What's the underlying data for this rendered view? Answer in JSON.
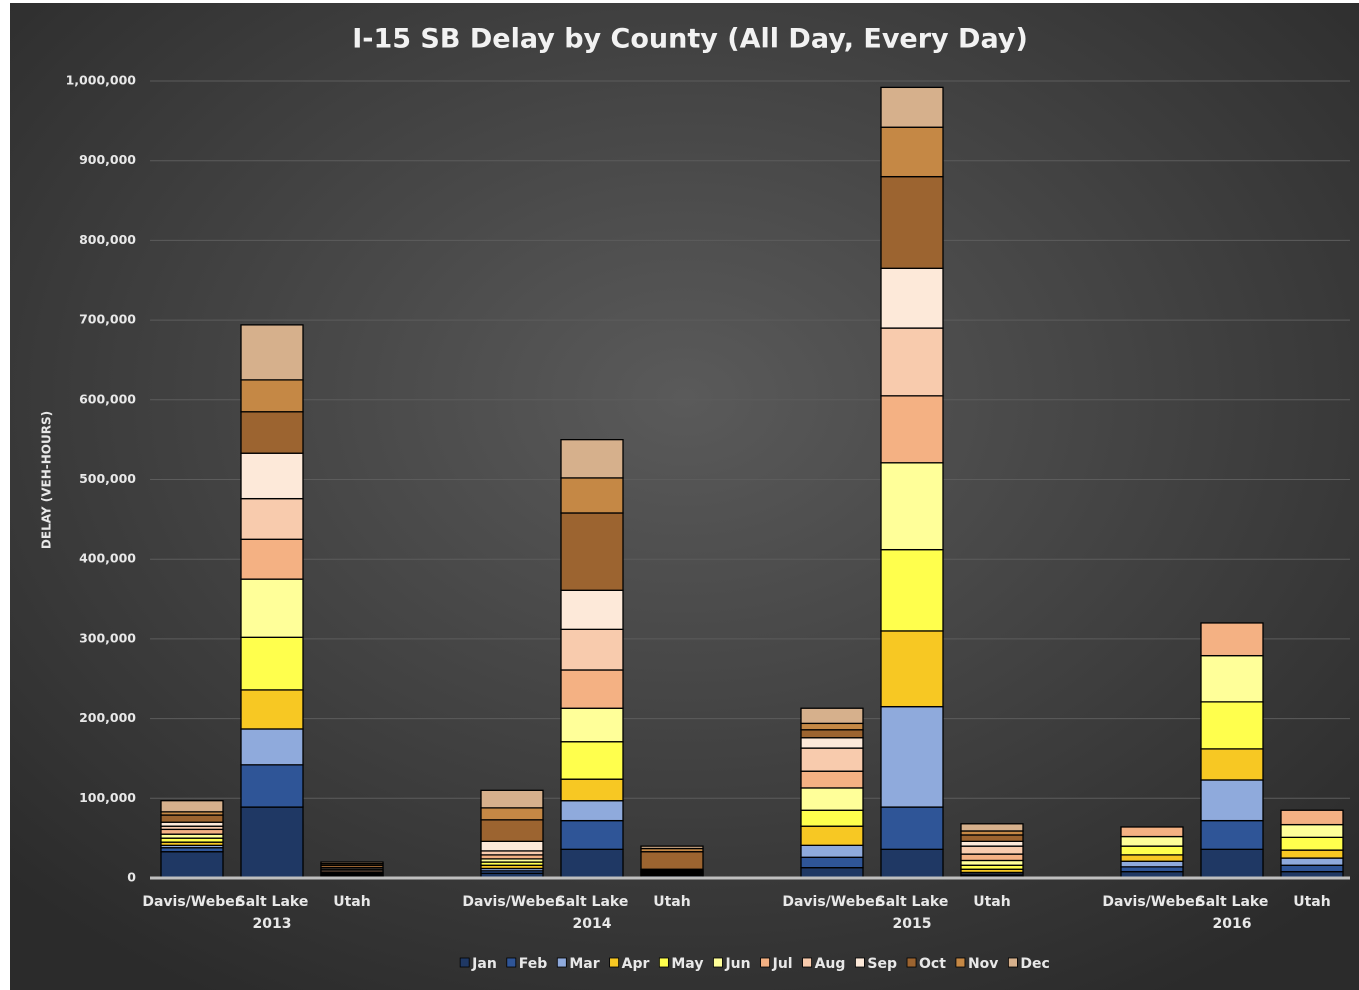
{
  "chart_data": {
    "type": "stacked_bar",
    "title": "I-15 SB Delay by County (All Day, Every Day)",
    "y_label": "DELAY (VEH-HOURS)",
    "categories": [
      "Davis/Weber",
      "Salt Lake",
      "Utah",
      "Davis/Weber",
      "Salt Lake",
      "Utah",
      "Davis/Weber",
      "Salt Lake",
      "Utah",
      "Davis/Weber",
      "Salt Lake",
      "Utah"
    ],
    "groups": [
      "2013",
      "2014",
      "2015",
      "2016"
    ],
    "ylim": [
      0,
      1000000
    ],
    "yticks": [
      0,
      {
        "value": 100000,
        "label": "100,000"
      },
      {
        "value": 200000,
        "label": "200,000"
      },
      {
        "value": 300000,
        "label": "300,000"
      },
      {
        "value": 400000,
        "label": "400,000"
      },
      {
        "value": 500000,
        "label": "500,000"
      },
      {
        "value": 600000,
        "label": "600,000"
      },
      {
        "value": 700000,
        "label": "700,000"
      },
      {
        "value": 800000,
        "label": "800,000"
      },
      {
        "value": 900000,
        "label": "900,000"
      },
      {
        "value": 1000000,
        "label": "1,000,000"
      }
    ],
    "grid": true,
    "legend": "bottom",
    "series": [
      {
        "name": "Jan",
        "color": "#1f3864",
        "values": [
          33000,
          89000,
          2000,
          6000,
          36000,
          3000,
          13000,
          36000,
          3000,
          8000,
          36000,
          8000
        ]
      },
      {
        "name": "Feb",
        "color": "#2f5597",
        "values": [
          5000,
          53000,
          1000,
          3000,
          36000,
          1000,
          13000,
          53000,
          2000,
          6000,
          36000,
          8000
        ]
      },
      {
        "name": "Mar",
        "color": "#8faadc",
        "values": [
          3000,
          45000,
          1000,
          3000,
          25000,
          1000,
          15000,
          126000,
          2000,
          7000,
          51000,
          9000
        ]
      },
      {
        "name": "Apr",
        "color": "#f7c823",
        "values": [
          4000,
          49000,
          1000,
          4000,
          27000,
          1000,
          24000,
          95000,
          4000,
          8000,
          39000,
          10000
        ]
      },
      {
        "name": "May",
        "color": "#ffff4d",
        "values": [
          5000,
          66000,
          1000,
          4000,
          47000,
          1000,
          20000,
          102000,
          5000,
          11000,
          59000,
          16000
        ]
      },
      {
        "name": "Jun",
        "color": "#ffff99",
        "values": [
          5000,
          73000,
          1000,
          4000,
          42000,
          1000,
          28000,
          109000,
          6000,
          12000,
          58000,
          16000
        ]
      },
      {
        "name": "Jul",
        "color": "#f4b183",
        "values": [
          6000,
          50000,
          2000,
          5000,
          48000,
          1000,
          21000,
          84000,
          8000,
          12000,
          41000,
          18000
        ]
      },
      {
        "name": "Aug",
        "color": "#f8cbad",
        "values": [
          4000,
          51000,
          2000,
          5000,
          51000,
          1000,
          29000,
          85000,
          10000,
          null,
          null,
          null
        ]
      },
      {
        "name": "Sep",
        "color": "#fde9d9",
        "values": [
          5000,
          57000,
          2000,
          12000,
          49000,
          1000,
          13000,
          75000,
          6000,
          null,
          null,
          null
        ]
      },
      {
        "name": "Oct",
        "color": "#9c6430",
        "values": [
          9000,
          52000,
          3000,
          27000,
          97000,
          22000,
          10000,
          115000,
          8000,
          null,
          null,
          null
        ]
      },
      {
        "name": "Nov",
        "color": "#c58845",
        "values": [
          4000,
          40000,
          2000,
          15000,
          44000,
          4000,
          8000,
          62000,
          5000,
          null,
          null,
          null
        ]
      },
      {
        "name": "Dec",
        "color": "#d6b08c",
        "values": [
          14000,
          69000,
          2000,
          22000,
          48000,
          3000,
          19000,
          50000,
          9000,
          null,
          null,
          null
        ]
      }
    ]
  }
}
